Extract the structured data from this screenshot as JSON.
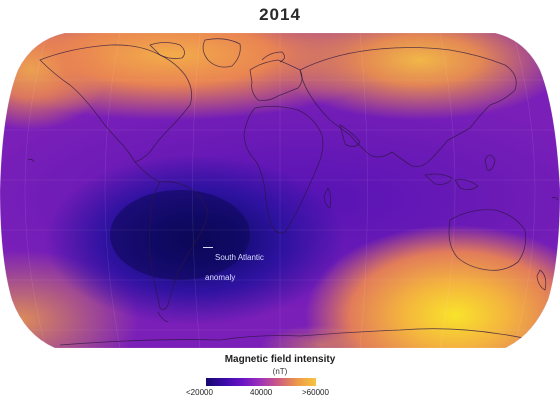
{
  "title": "2014",
  "annotation": {
    "line1": "South Atlantic",
    "line2": "anomaly"
  },
  "legend": {
    "title": "Magnetic field intensity",
    "unit": "(nT)",
    "ticks": [
      "<20000",
      "40000",
      ">60000"
    ],
    "colors": [
      "#14086e",
      "#3b0aa6",
      "#6a15c6",
      "#a034b8",
      "#cf5e7e",
      "#ee9a48",
      "#f5c541"
    ]
  },
  "map": {
    "projection": "Robinson-like world map",
    "highlight_region": "South Atlantic anomaly",
    "field_minimum_region": "South America / South Atlantic",
    "field_maximum_regions": [
      "Northern Canada/Arctic",
      "Northern Asia/Siberia",
      "Antarctica south of Australia"
    ]
  }
}
